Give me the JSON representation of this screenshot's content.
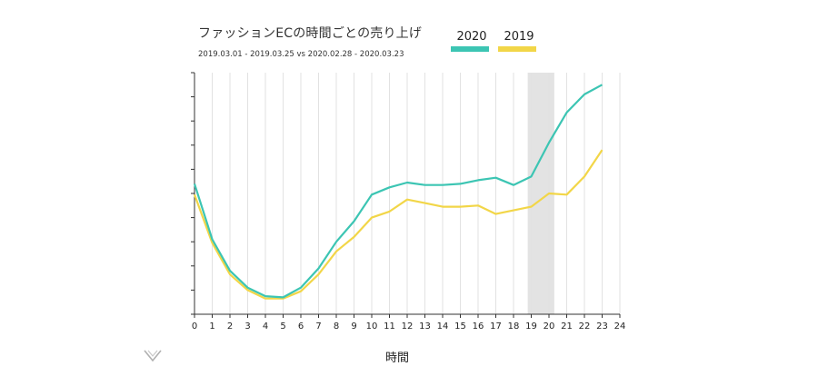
{
  "chart_data": {
    "type": "line",
    "title": "ファッションECの時間ごとの売り上げ",
    "subtitle": "2019.03.01 - 2019.03.25 vs 2020.02.28 - 2020.03.23",
    "xlabel": "時間",
    "ylabel": "",
    "x": [
      0,
      1,
      2,
      3,
      4,
      5,
      6,
      7,
      8,
      9,
      10,
      11,
      12,
      13,
      14,
      15,
      16,
      17,
      18,
      19,
      20,
      21,
      22,
      23
    ],
    "xticks": [
      "0",
      "1",
      "2",
      "3",
      "4",
      "5",
      "6",
      "7",
      "8",
      "9",
      "10",
      "11",
      "12",
      "13",
      "14",
      "15",
      "16",
      "17",
      "18",
      "19",
      "20",
      "21",
      "22",
      "23",
      "24"
    ],
    "xlim": [
      0,
      24
    ],
    "ylim": [
      0,
      100
    ],
    "grid": "vertical",
    "highlight_range": [
      18.8,
      20.3
    ],
    "legend_position": "top-right",
    "series": [
      {
        "name": "2020",
        "color": "#3cc5b3",
        "values": [
          54,
          31,
          18,
          11,
          7.5,
          7,
          11,
          19,
          30,
          38.5,
          49.5,
          52.5,
          54.5,
          53.5,
          53.5,
          54,
          55.5,
          56.5,
          53.5,
          57,
          71,
          83.5,
          91,
          95
        ]
      },
      {
        "name": "2019",
        "color": "#f2d648",
        "values": [
          49.5,
          29.5,
          16.5,
          10,
          6.5,
          6.5,
          9.5,
          16.5,
          26,
          32,
          40,
          42.5,
          47.5,
          46,
          44.5,
          44.5,
          45,
          41.5,
          43,
          44.5,
          50,
          49.5,
          57,
          68
        ]
      }
    ]
  }
}
